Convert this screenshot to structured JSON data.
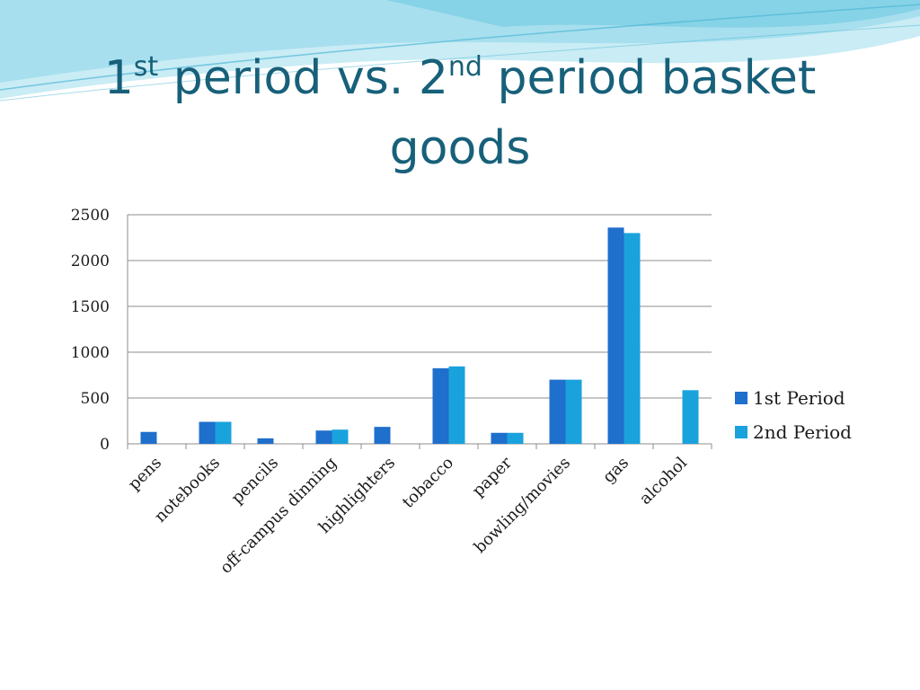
{
  "slide": {
    "title": {
      "part1": "1",
      "sup1": "st",
      "part2": " period vs. 2",
      "sup2": "nd",
      "part3": " period basket goods"
    },
    "colors": {
      "title": "#17607a",
      "decoration": "#8fd3e6"
    }
  },
  "chart_data": {
    "type": "bar",
    "title": "",
    "xlabel": "",
    "ylabel": "",
    "categories": [
      "pens",
      "notebooks",
      "pencils",
      "off-campus dinning",
      "highlighters",
      "tobacco",
      "paper",
      "bowling/movies",
      "gas",
      "alcohol"
    ],
    "series": [
      {
        "name": "1st Period",
        "color": "#1f6fcc",
        "values": [
          130,
          240,
          60,
          145,
          185,
          825,
          120,
          700,
          2360,
          0
        ]
      },
      {
        "name": "2nd Period",
        "color": "#1aa2dc",
        "values": [
          0,
          240,
          0,
          155,
          0,
          845,
          120,
          700,
          2300,
          585
        ]
      }
    ],
    "ylim": [
      0,
      2500
    ],
    "yticks": [
      0,
      500,
      1000,
      1500,
      2000,
      2500
    ],
    "grid": true,
    "legend": "right"
  }
}
